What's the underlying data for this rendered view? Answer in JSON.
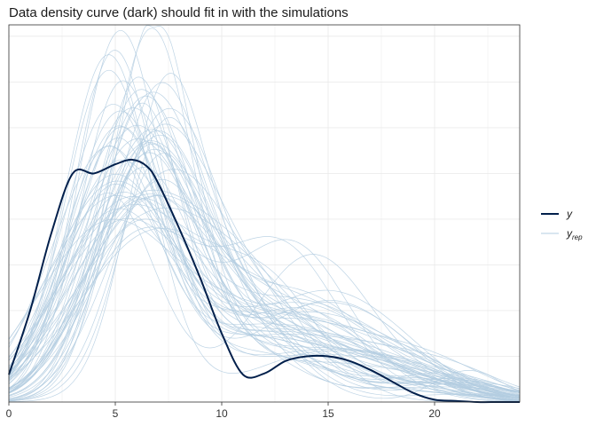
{
  "title": "Data density curve (dark) should fit in with the simulations",
  "legend": {
    "y_label": "y",
    "yrep_label": "y",
    "yrep_subscript": "rep"
  },
  "colors": {
    "y": "#011f4b",
    "yrep": "#b3cde0",
    "grid": "#ebebeb",
    "axis": "#333333"
  },
  "chart_data": {
    "type": "line",
    "title": "Data density curve (dark) should fit in with the simulations",
    "xlabel": "",
    "ylabel": "",
    "xlim": [
      0,
      24
    ],
    "ylim": [
      0,
      0.165
    ],
    "x_ticks": [
      0,
      5,
      10,
      15,
      20
    ],
    "y_ticks_shown": false,
    "grid": true,
    "legend_position": "right",
    "series": [
      {
        "name": "y",
        "x": [
          0,
          1,
          2,
          3,
          4,
          5,
          5.8,
          6.5,
          7,
          8,
          9,
          10,
          11,
          12,
          13,
          14,
          15,
          16,
          17,
          18,
          19,
          20,
          21,
          22,
          23,
          24
        ],
        "values": [
          0.012,
          0.04,
          0.074,
          0.1,
          0.1,
          0.104,
          0.106,
          0.103,
          0.096,
          0.076,
          0.054,
          0.03,
          0.012,
          0.0125,
          0.018,
          0.02,
          0.02,
          0.018,
          0.014,
          0.009,
          0.004,
          0.001,
          0.0005,
          0,
          0,
          0
        ]
      },
      {
        "name": "y_rep",
        "values": "100 simulated density curves (light)"
      }
    ]
  }
}
